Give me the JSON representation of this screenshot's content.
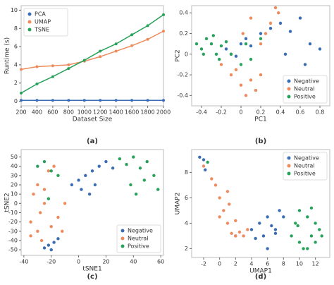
{
  "chart_data": [
    {
      "type": "line",
      "panel_label": "(a)",
      "x_label": "Dataset Size",
      "y_label": "Runtime (s)",
      "x": [
        200,
        400,
        600,
        800,
        1000,
        1200,
        1400,
        1600,
        1800,
        2000
      ],
      "series": [
        {
          "name": "PCA",
          "color": "#3b6db5",
          "values": [
            0.1,
            0.1,
            0.1,
            0.1,
            0.1,
            0.1,
            0.1,
            0.1,
            0.1,
            0.1
          ]
        },
        {
          "name": "UMAP",
          "color": "#ee8a5c",
          "values": [
            3.5,
            3.8,
            3.9,
            4.0,
            4.4,
            4.9,
            5.5,
            6.1,
            6.8,
            7.7
          ]
        },
        {
          "name": "TSNE",
          "color": "#27a25a",
          "values": [
            0.9,
            1.9,
            2.7,
            3.6,
            4.5,
            5.5,
            6.3,
            7.3,
            8.3,
            9.5
          ]
        }
      ],
      "xlim": [
        200,
        2000
      ],
      "xticks": [
        200,
        400,
        600,
        800,
        1000,
        1200,
        1400,
        1600,
        1800,
        2000
      ],
      "ylim": [
        -0.5,
        10.5
      ],
      "yticks": [
        0,
        2,
        4,
        6,
        8,
        10
      ],
      "legend": "upper left"
    },
    {
      "type": "scatter",
      "panel_label": "(b)",
      "x_label": "PC1",
      "y_label": "PC2",
      "series": [
        {
          "name": "Negative",
          "color": "#3b6db5",
          "x": [
            -0.15,
            -0.1,
            -0.05,
            0.0,
            0.05,
            0.1,
            0.2,
            0.3,
            0.4,
            0.5,
            0.6,
            0.7,
            0.8,
            0.65,
            0.45
          ],
          "y": [
            0.05,
            0.0,
            -0.02,
            0.1,
            0.15,
            0.08,
            0.2,
            0.25,
            0.3,
            0.22,
            0.35,
            0.1,
            0.05,
            -0.1,
            0.0
          ]
        },
        {
          "name": "Neutral",
          "color": "#ee8a5c",
          "x": [
            -0.2,
            -0.1,
            0.0,
            0.05,
            0.1,
            0.15,
            0.2,
            0.25,
            0.3,
            0.35,
            -0.05,
            0.1,
            0.2,
            0.38,
            0.02
          ],
          "y": [
            -0.1,
            -0.2,
            -0.3,
            -0.4,
            -0.25,
            -0.35,
            0.1,
            0.2,
            0.3,
            0.45,
            -0.15,
            0.35,
            -0.2,
            0.4,
            0.2
          ]
        },
        {
          "name": "Positive",
          "color": "#27a25a",
          "x": [
            -0.45,
            -0.4,
            -0.35,
            -0.3,
            -0.25,
            -0.2,
            -0.15,
            -0.1,
            0.0,
            0.1,
            0.2,
            -0.38,
            -0.28,
            0.05,
            -0.22
          ],
          "y": [
            0.1,
            0.05,
            0.15,
            0.1,
            0.0,
            0.08,
            0.12,
            0.0,
            -0.1,
            -0.05,
            0.15,
            0.0,
            0.18,
            0.1,
            -0.05
          ]
        }
      ],
      "xlim": [
        -0.5,
        0.9
      ],
      "xticks": [
        -0.4,
        -0.2,
        0,
        0.2,
        0.4,
        0.6,
        0.8
      ],
      "ylim": [
        -0.5,
        0.47
      ],
      "yticks": [
        -0.4,
        -0.2,
        0,
        0.2,
        0.4
      ],
      "legend": "lower right"
    },
    {
      "type": "scatter",
      "panel_label": "(c)",
      "x_label": "tSNE1",
      "y_label": "tSNE2",
      "series": [
        {
          "name": "Negative",
          "color": "#3b6db5",
          "x": [
            -25,
            -22,
            -18,
            -15,
            -20,
            -5,
            0,
            5,
            10,
            15,
            20,
            25,
            8,
            12,
            2
          ],
          "y": [
            -48,
            -45,
            -42,
            -38,
            -50,
            20,
            25,
            30,
            35,
            40,
            45,
            38,
            10,
            20,
            15
          ]
        },
        {
          "name": "Neutral",
          "color": "#ee8a5c",
          "x": [
            -35,
            -30,
            -28,
            -25,
            -20,
            -33,
            -15,
            -10,
            -30,
            -22,
            -18,
            -35,
            -27,
            -12,
            -25
          ],
          "y": [
            -20,
            -30,
            -10,
            0,
            -25,
            10,
            -15,
            0,
            20,
            35,
            40,
            -35,
            -40,
            -30,
            15
          ]
        },
        {
          "name": "Positive",
          "color": "#27a25a",
          "x": [
            -30,
            -25,
            -20,
            -15,
            -22,
            30,
            35,
            40,
            45,
            50,
            55,
            38,
            48,
            58,
            42
          ],
          "y": [
            40,
            45,
            35,
            30,
            5,
            48,
            42,
            50,
            38,
            45,
            30,
            20,
            25,
            15,
            10
          ]
        }
      ],
      "xlim": [
        -42,
        62
      ],
      "xticks": [
        -40,
        -20,
        0,
        20,
        40,
        60
      ],
      "ylim": [
        -56,
        58
      ],
      "yticks": [
        -50,
        -40,
        -30,
        -20,
        -10,
        0,
        10,
        20,
        30,
        40,
        50
      ],
      "legend": "lower right"
    },
    {
      "type": "scatter",
      "panel_label": "(d)",
      "x_label": "UMAP1",
      "y_label": "UMAP2",
      "series": [
        {
          "name": "Negative",
          "color": "#3b6db5",
          "x": [
            -2.5,
            -2,
            -1.8,
            2,
            4,
            5,
            5.5,
            6,
            6.5,
            7,
            7.5,
            8,
            4.5,
            6,
            7
          ],
          "y": [
            9.2,
            9,
            8.2,
            3,
            3.5,
            4,
            3,
            4.5,
            3.8,
            3.2,
            5,
            4.5,
            2.8,
            2,
            3.5
          ]
        },
        {
          "name": "Neutral",
          "color": "#ee8a5c",
          "x": [
            -2,
            -1,
            0,
            0.5,
            1,
            1.5,
            2,
            2.5,
            3,
            1,
            -0.5,
            0,
            3.5,
            2,
            1.2
          ],
          "y": [
            8.5,
            7.5,
            6,
            5,
            4,
            3.2,
            3,
            3.3,
            3,
            6.5,
            7,
            4.5,
            3.5,
            4.2,
            5.5
          ]
        },
        {
          "name": "Positive",
          "color": "#27a25a",
          "x": [
            9,
            9.5,
            10,
            10.5,
            11,
            11.5,
            12,
            12.5,
            10,
            11,
            12,
            -1.5,
            9.8,
            11.5,
            12.8
          ],
          "y": [
            3,
            4,
            5,
            2,
            4.5,
            3,
            4,
            3.5,
            2.5,
            2,
            2.5,
            8.8,
            3.8,
            5.2,
            3
          ]
        }
      ],
      "xlim": [
        -3.5,
        13.8
      ],
      "xticks": [
        -2,
        0,
        2,
        4,
        6,
        8,
        10,
        12
      ],
      "ylim": [
        1.3,
        9.8
      ],
      "yticks": [
        2,
        4,
        6,
        8
      ],
      "legend": "upper right"
    }
  ]
}
